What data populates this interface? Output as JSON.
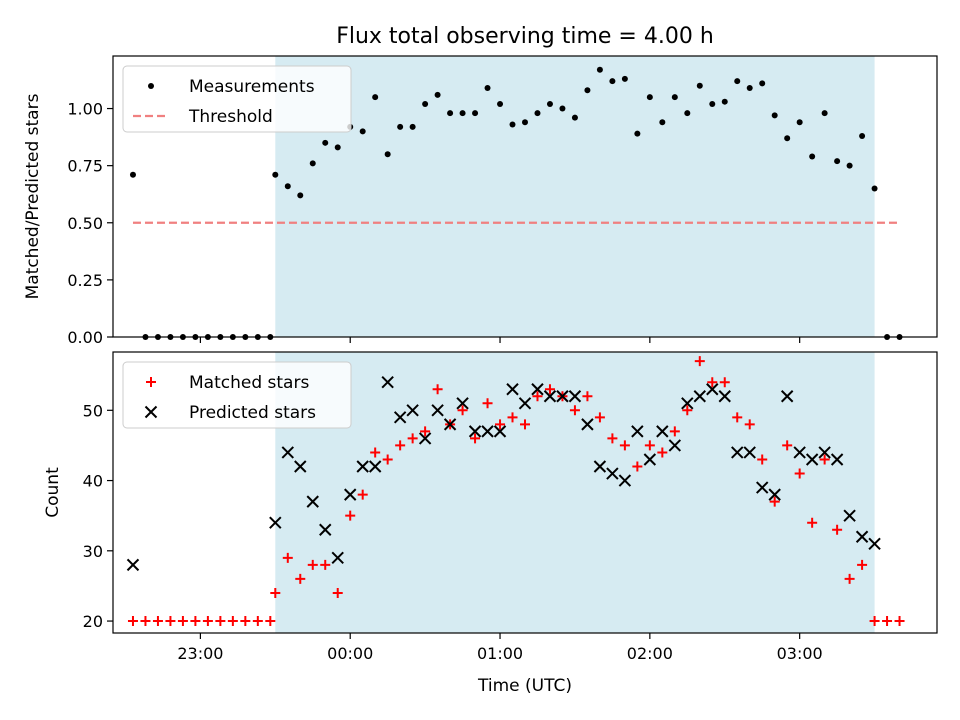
{
  "chart_data": [
    {
      "type": "scatter",
      "title": "Flux total observing time = 4.00 h",
      "xlabel": "",
      "ylabel": "Matched/Predicted stars",
      "ylim": [
        0,
        1.23
      ],
      "yticks": [
        0,
        0.25,
        0.5,
        0.75,
        1.0
      ],
      "ytick_labels": [
        "0.00",
        "0.25",
        "0.50",
        "0.75",
        "1.00"
      ],
      "xlim": [
        "22:25",
        "03:55"
      ],
      "xticks": [
        "23:00",
        "00:00",
        "01:00",
        "02:00",
        "03:00"
      ],
      "shaded_region": {
        "start": "23:30",
        "end": "03:30",
        "color": "#add8e6"
      },
      "legend_position": "upper-left",
      "series": [
        {
          "name": "Measurements",
          "marker": "dot",
          "color": "#000000",
          "x": [
            "22:33",
            "22:38",
            "22:43",
            "22:48",
            "22:53",
            "22:58",
            "23:03",
            "23:08",
            "23:13",
            "23:18",
            "23:23",
            "23:28",
            "23:30",
            "23:35",
            "23:40",
            "23:45",
            "23:50",
            "23:55",
            "24:00",
            "24:05",
            "24:10",
            "24:15",
            "24:20",
            "24:25",
            "24:30",
            "24:35",
            "24:40",
            "24:45",
            "24:50",
            "24:55",
            "25:00",
            "25:05",
            "25:10",
            "25:15",
            "25:20",
            "25:25",
            "25:30",
            "25:35",
            "25:40",
            "25:45",
            "25:50",
            "25:55",
            "26:00",
            "26:05",
            "26:10",
            "26:15",
            "26:20",
            "26:25",
            "26:30",
            "26:35",
            "26:40",
            "26:45",
            "26:50",
            "26:55",
            "27:00",
            "27:05",
            "27:10",
            "27:15",
            "27:20",
            "27:25",
            "27:30",
            "27:35",
            "27:40"
          ],
          "y": [
            0.71,
            0.0,
            0.0,
            0.0,
            0.0,
            0.0,
            0.0,
            0.0,
            0.0,
            0.0,
            0.0,
            0.0,
            0.71,
            0.66,
            0.62,
            0.76,
            0.85,
            0.83,
            0.92,
            0.9,
            1.05,
            0.8,
            0.92,
            0.92,
            1.02,
            1.06,
            0.98,
            0.98,
            0.98,
            1.09,
            1.02,
            0.93,
            0.94,
            0.98,
            1.02,
            1.0,
            0.96,
            1.08,
            1.17,
            1.12,
            1.13,
            0.89,
            1.05,
            0.94,
            1.05,
            0.98,
            1.1,
            1.02,
            1.03,
            1.12,
            1.09,
            1.11,
            0.97,
            0.87,
            0.94,
            0.79,
            0.98,
            0.77,
            0.75,
            0.88,
            0.65,
            0.0,
            0.0
          ]
        },
        {
          "name": "Threshold",
          "marker": "dashed-line",
          "color": "#f08080",
          "x": [
            "22:33",
            "27:40"
          ],
          "y": [
            0.5,
            0.5
          ]
        }
      ]
    },
    {
      "type": "scatter",
      "xlabel": "Time (UTC)",
      "ylabel": "Count",
      "ylim": [
        18.3,
        58.3
      ],
      "yticks": [
        20,
        30,
        40,
        50
      ],
      "ytick_labels": [
        "20",
        "30",
        "40",
        "50"
      ],
      "xlim": [
        "22:25",
        "03:55"
      ],
      "xticks": [
        "23:00",
        "00:00",
        "01:00",
        "02:00",
        "03:00"
      ],
      "shaded_region": {
        "start": "23:30",
        "end": "03:30",
        "color": "#add8e6"
      },
      "legend_position": "upper-left",
      "series": [
        {
          "name": "Matched stars",
          "marker": "plus",
          "color": "#ff0000",
          "x": [
            "22:33",
            "22:38",
            "22:43",
            "22:48",
            "22:53",
            "22:58",
            "23:03",
            "23:08",
            "23:13",
            "23:18",
            "23:23",
            "23:28",
            "23:30",
            "23:35",
            "23:40",
            "23:45",
            "23:50",
            "23:55",
            "24:00",
            "24:05",
            "24:10",
            "24:15",
            "24:20",
            "24:25",
            "24:30",
            "24:35",
            "24:40",
            "24:45",
            "24:50",
            "24:55",
            "25:00",
            "25:05",
            "25:10",
            "25:15",
            "25:20",
            "25:25",
            "25:30",
            "25:35",
            "25:40",
            "25:45",
            "25:50",
            "25:55",
            "26:00",
            "26:05",
            "26:10",
            "26:15",
            "26:20",
            "26:25",
            "26:30",
            "26:35",
            "26:40",
            "26:45",
            "26:50",
            "26:55",
            "27:00",
            "27:05",
            "27:10",
            "27:15",
            "27:20",
            "27:25",
            "27:30",
            "27:35",
            "27:40"
          ],
          "y": [
            20,
            20,
            20,
            20,
            20,
            20,
            20,
            20,
            20,
            20,
            20,
            20,
            24,
            29,
            26,
            28,
            28,
            24,
            35,
            38,
            44,
            43,
            45,
            46,
            47,
            53,
            48,
            50,
            46,
            51,
            48,
            49,
            48,
            52,
            53,
            52,
            50,
            52,
            49,
            46,
            45,
            42,
            45,
            44,
            47,
            50,
            57,
            54,
            54,
            49,
            48,
            43,
            37,
            45,
            41,
            34,
            43,
            33,
            26,
            28,
            20,
            20,
            20
          ]
        },
        {
          "name": "Predicted stars",
          "marker": "x",
          "color": "#000000",
          "x": [
            "22:33",
            "23:30",
            "23:35",
            "23:40",
            "23:45",
            "23:50",
            "23:55",
            "24:00",
            "24:05",
            "24:10",
            "24:15",
            "24:20",
            "24:25",
            "24:30",
            "24:35",
            "24:40",
            "24:45",
            "24:50",
            "24:55",
            "25:00",
            "25:05",
            "25:10",
            "25:15",
            "25:20",
            "25:25",
            "25:30",
            "25:35",
            "25:40",
            "25:45",
            "25:50",
            "25:55",
            "26:00",
            "26:05",
            "26:10",
            "26:15",
            "26:20",
            "26:25",
            "26:30",
            "26:35",
            "26:40",
            "26:45",
            "26:50",
            "26:55",
            "27:00",
            "27:05",
            "27:10",
            "27:15",
            "27:20",
            "27:25",
            "27:30"
          ],
          "y": [
            28,
            34,
            44,
            42,
            37,
            33,
            29,
            38,
            42,
            42,
            54,
            49,
            50,
            46,
            50,
            48,
            51,
            47,
            47,
            47,
            53,
            51,
            53,
            52,
            52,
            52,
            48,
            42,
            41,
            40,
            47,
            43,
            47,
            45,
            51,
            52,
            53,
            52,
            44,
            44,
            39,
            38,
            52,
            44,
            43,
            44,
            43,
            35,
            32,
            31
          ]
        }
      ]
    }
  ]
}
